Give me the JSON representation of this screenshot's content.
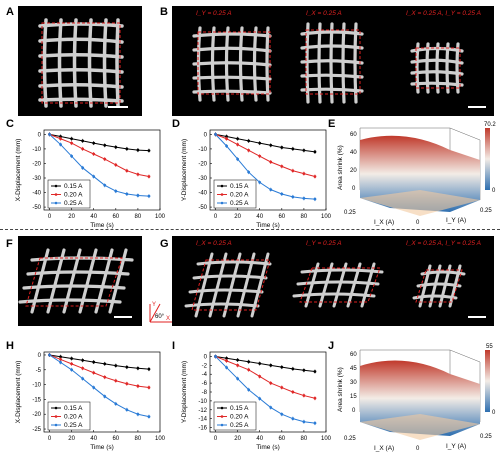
{
  "panels": {
    "A": "A",
    "B": "B",
    "C": "C",
    "D": "D",
    "E": "E",
    "F": "F",
    "G": "G",
    "H": "H",
    "I": "I",
    "J": "J"
  },
  "photos": {
    "B_labels": [
      "I_Y = 0.25 A",
      "I_X = 0.25 A",
      "I_X = 0.25 A, I_Y = 0.25 A"
    ],
    "G_labels": [
      "I_X = 0.25 A",
      "I_Y = 0.25 A",
      "I_X = 0.25 A, I_Y = 0.25 A"
    ],
    "F_axis": {
      "y": "Y",
      "x": "X",
      "angle": "60°"
    }
  },
  "surfaces": {
    "E": {
      "zlabel": "Area shrink (%)",
      "colorbar_max": "70.2",
      "colorbar_min": "0",
      "ticks_z": [
        "60",
        "40",
        "20",
        "0"
      ],
      "x_label": "I_X (A)",
      "y_label": "I_Y (A)",
      "x_ticks": [
        "0.25",
        "0"
      ],
      "y_ticks": [
        "0",
        "0.25"
      ]
    },
    "J": {
      "zlabel": "Area shrink (%)",
      "colorbar_max": "55",
      "colorbar_min": "0",
      "ticks_z": [
        "60",
        "45",
        "30",
        "15",
        "0"
      ],
      "x_label": "I_X (A)",
      "y_label": "I_Y (A)",
      "x_ticks": [
        "0.25",
        "0"
      ],
      "y_ticks": [
        "0",
        "0.25"
      ]
    },
    "colors": {
      "high": "#c0392b",
      "mid": "#f3ece6",
      "low": "#2e6fb0"
    }
  },
  "chart_data": [
    {
      "id": "C",
      "type": "line",
      "xlabel": "Time (s)",
      "ylabel": "X-Displacement (mm)",
      "xlim": [
        -5,
        100
      ],
      "ylim": [
        -52,
        3
      ],
      "xticks": [
        0,
        20,
        40,
        60,
        80,
        100
      ],
      "yticks": [
        0,
        -10,
        -20,
        -30,
        -40,
        -50
      ],
      "x": [
        0,
        10,
        20,
        30,
        40,
        50,
        60,
        70,
        80,
        90
      ],
      "series": [
        {
          "name": "0.15 A",
          "color": "#000000",
          "values": [
            0,
            -1.5,
            -3,
            -4.5,
            -6,
            -7.5,
            -8.8,
            -10,
            -10.8,
            -11.2
          ]
        },
        {
          "name": "0.20 A",
          "color": "#e02828",
          "values": [
            0,
            -3,
            -6,
            -10,
            -13.5,
            -17,
            -21,
            -25,
            -27.5,
            -29
          ]
        },
        {
          "name": "0.25 A",
          "color": "#2a7bd6",
          "values": [
            0,
            -7,
            -15,
            -23,
            -29,
            -35,
            -39,
            -41,
            -42,
            -42.5
          ]
        }
      ]
    },
    {
      "id": "D",
      "type": "line",
      "xlabel": "Time (s)",
      "ylabel": "Y-Displacement (mm)",
      "xlim": [
        -5,
        100
      ],
      "ylim": [
        -52,
        3
      ],
      "xticks": [
        0,
        20,
        40,
        60,
        80,
        100
      ],
      "yticks": [
        0,
        -10,
        -20,
        -30,
        -40,
        -50
      ],
      "x": [
        0,
        10,
        20,
        30,
        40,
        50,
        60,
        70,
        80,
        90
      ],
      "series": [
        {
          "name": "0.15 A",
          "color": "#000000",
          "values": [
            0,
            -1.5,
            -3,
            -4.5,
            -6,
            -7.5,
            -9,
            -10,
            -11,
            -12
          ]
        },
        {
          "name": "0.20 A",
          "color": "#e02828",
          "values": [
            0,
            -3,
            -7,
            -11,
            -15,
            -19,
            -22,
            -25,
            -27,
            -29
          ]
        },
        {
          "name": "0.25 A",
          "color": "#2a7bd6",
          "values": [
            0,
            -8,
            -17,
            -26,
            -33,
            -38,
            -41,
            -43,
            -44,
            -44.5
          ]
        }
      ]
    },
    {
      "id": "H",
      "type": "line",
      "xlabel": "Time (s)",
      "ylabel": "X-Displacement (mm)",
      "xlim": [
        -5,
        100
      ],
      "ylim": [
        -26,
        1
      ],
      "xticks": [
        0,
        20,
        40,
        60,
        80,
        100
      ],
      "yticks": [
        0,
        -5,
        -10,
        -15,
        -20,
        -25
      ],
      "x": [
        0,
        10,
        20,
        30,
        40,
        50,
        60,
        70,
        80,
        90
      ],
      "series": [
        {
          "name": "0.15 A",
          "color": "#000000",
          "values": [
            0,
            -0.6,
            -1.2,
            -1.8,
            -2.4,
            -3.0,
            -3.6,
            -4.1,
            -4.5,
            -4.8
          ]
        },
        {
          "name": "0.20 A",
          "color": "#e02828",
          "values": [
            0,
            -1.5,
            -3,
            -4.5,
            -6,
            -7.5,
            -8.7,
            -9.7,
            -10.5,
            -11
          ]
        },
        {
          "name": "0.25 A",
          "color": "#2a7bd6",
          "values": [
            0,
            -2.5,
            -5,
            -8,
            -11,
            -14,
            -16.5,
            -18.5,
            -20,
            -20.8
          ]
        }
      ]
    },
    {
      "id": "I",
      "type": "line",
      "xlabel": "Time (s)",
      "ylabel": "Y-Displacement (mm)",
      "xlim": [
        -5,
        100
      ],
      "ylim": [
        -17,
        1
      ],
      "xticks": [
        0,
        20,
        40,
        60,
        80,
        100
      ],
      "yticks": [
        0,
        -2,
        -4,
        -6,
        -8,
        -10,
        -12,
        -14,
        -16
      ],
      "x": [
        0,
        10,
        20,
        30,
        40,
        50,
        60,
        70,
        80,
        90
      ],
      "series": [
        {
          "name": "0.15 A",
          "color": "#000000",
          "values": [
            0,
            -0.4,
            -0.8,
            -1.2,
            -1.6,
            -2.0,
            -2.4,
            -2.8,
            -3.1,
            -3.4
          ]
        },
        {
          "name": "0.20 A",
          "color": "#e02828",
          "values": [
            0,
            -1,
            -2,
            -3,
            -4.5,
            -6,
            -7,
            -8,
            -8.8,
            -9.4
          ]
        },
        {
          "name": "0.25 A",
          "color": "#2a7bd6",
          "values": [
            0,
            -2.5,
            -5,
            -7.5,
            -9.5,
            -11.5,
            -13,
            -14,
            -14.7,
            -15
          ]
        }
      ]
    }
  ]
}
